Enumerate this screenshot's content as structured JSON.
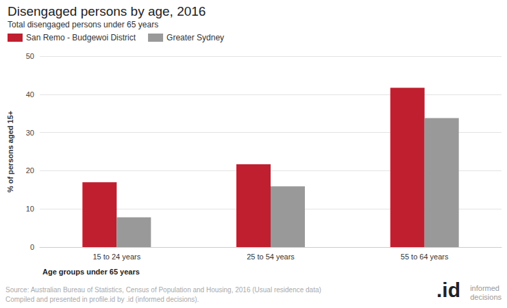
{
  "chart_data": {
    "type": "bar",
    "title": "Disengaged persons by age, 2016",
    "subtitle": "Total disengaged persons under 65 years",
    "x_label": "Age groups under 65 years",
    "y_label": "% of persons aged 15+",
    "categories": [
      "15 to 24 years",
      "25 to 54 years",
      "55 to 64 years"
    ],
    "series": [
      {
        "name": "San Remo - Budgewoi District",
        "color": "#c01f2f",
        "values": [
          17.0,
          21.7,
          41.7
        ]
      },
      {
        "name": "Greater Sydney",
        "color": "#999999",
        "values": [
          7.8,
          15.9,
          33.8
        ]
      }
    ],
    "ylim": [
      0,
      50
    ],
    "yticks": [
      0,
      10,
      20,
      30,
      40,
      50
    ],
    "grid": true,
    "legend": "upper left",
    "source": "Source: Australian Bureau of Statistics, Census of Population and Housing, 2016 (Usual residence data)",
    "credit": "Compiled and presented in profile.id by .id (informed decisions).",
    "logo_mark": ".id",
    "logo_text": [
      "informed",
      "decisions"
    ]
  }
}
